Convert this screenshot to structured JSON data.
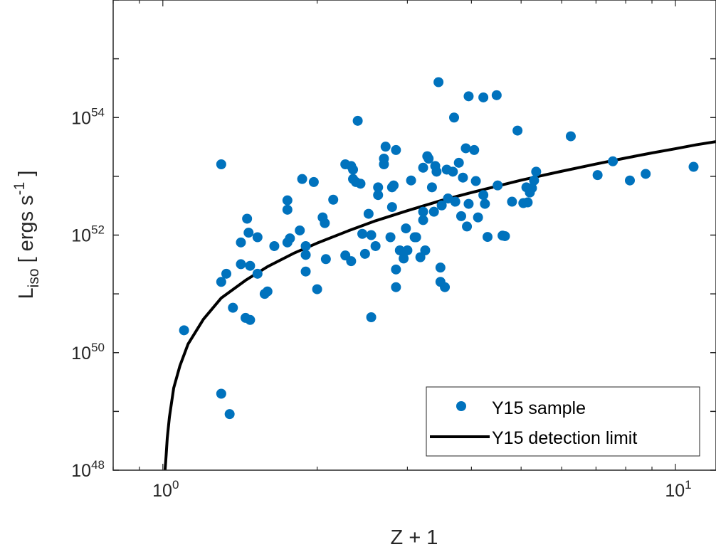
{
  "chart_data": {
    "type": "scatter",
    "xlabel": "Z + 1",
    "ylabel": {
      "base": "L",
      "sub": "iso",
      "unit_open": " [ ergs s",
      "unit_exp": "-1",
      "unit_close": " ]"
    },
    "x_scale": "log",
    "y_scale": "log",
    "xlim": [
      0.8,
      12
    ],
    "ylim": [
      1e+48,
      1e+56
    ],
    "x_ticks": [
      {
        "value": 1,
        "label": "10",
        "exp": "0"
      },
      {
        "value": 10,
        "label": "10",
        "exp": "1"
      }
    ],
    "y_ticks": [
      {
        "value": 1e+48,
        "label": "10",
        "exp": "48"
      },
      {
        "value": 1e+50,
        "label": "10",
        "exp": "50"
      },
      {
        "value": 1e+52,
        "label": "10",
        "exp": "52"
      },
      {
        "value": 1e+54,
        "label": "10",
        "exp": "54"
      }
    ],
    "grid": false,
    "legend_position": "bottom-right",
    "colors": {
      "points": "#0072BD",
      "limit_line": "#000000",
      "axes": "#262626"
    },
    "series": [
      {
        "name": "Y15 sample",
        "kind": "scatter",
        "points": [
          [
            1.1,
            2.4e+50
          ],
          [
            1.3,
            1.6e+53
          ],
          [
            1.3,
            1.6e+51
          ],
          [
            1.3,
            2e+49
          ],
          [
            1.33,
            2.2e+51
          ],
          [
            1.35,
            9e+48
          ],
          [
            1.37,
            5.8e+50
          ],
          [
            1.42,
            7.5e+51
          ],
          [
            1.42,
            3.2e+51
          ],
          [
            1.45,
            3.9e+50
          ],
          [
            1.46,
            1.9e+52
          ],
          [
            1.47,
            1.1e+52
          ],
          [
            1.48,
            3e+51
          ],
          [
            1.48,
            3.6e+50
          ],
          [
            1.53,
            2.2e+51
          ],
          [
            1.53,
            9.2e+51
          ],
          [
            1.58,
            1e+51
          ],
          [
            1.6,
            1.1e+51
          ],
          [
            1.65,
            6.5e+51
          ],
          [
            1.75,
            7.5e+51
          ],
          [
            1.75,
            2.7e+52
          ],
          [
            1.75,
            3.9e+52
          ],
          [
            1.77,
            8.8e+51
          ],
          [
            1.85,
            1.2e+52
          ],
          [
            1.87,
            9e+52
          ],
          [
            1.9,
            6.5e+51
          ],
          [
            1.9,
            2.4e+51
          ],
          [
            1.9,
            4.6e+51
          ],
          [
            1.97,
            8e+52
          ],
          [
            2,
            1.2e+51
          ],
          [
            2.05,
            2e+52
          ],
          [
            2.07,
            1.6e+52
          ],
          [
            2.08,
            3.9e+51
          ],
          [
            2.15,
            4e+52
          ],
          [
            2.27,
            4.5e+51
          ],
          [
            2.27,
            1.6e+53
          ],
          [
            2.33,
            1.5e+53
          ],
          [
            2.33,
            3.6e+51
          ],
          [
            2.35,
            9e+52
          ],
          [
            2.35,
            1.3e+53
          ],
          [
            2.38,
            8e+52
          ],
          [
            2.4,
            8.8e+53
          ],
          [
            2.43,
            7.5e+52
          ],
          [
            2.45,
            1.05e+52
          ],
          [
            2.48,
            4.8e+51
          ],
          [
            2.52,
            2.3e+52
          ],
          [
            2.55,
            1e+52
          ],
          [
            2.55,
            4e+50
          ],
          [
            2.6,
            6.5e+51
          ],
          [
            2.63,
            4.8e+52
          ],
          [
            2.63,
            6.5e+52
          ],
          [
            2.7,
            1.6e+53
          ],
          [
            2.7,
            2e+53
          ],
          [
            2.72,
            3.2e+53
          ],
          [
            2.78,
            9.2e+51
          ],
          [
            2.8,
            3e+52
          ],
          [
            2.8,
            6.5e+52
          ],
          [
            2.82,
            7e+52
          ],
          [
            2.85,
            2.8e+53
          ],
          [
            2.85,
            2.6e+51
          ],
          [
            2.85,
            1.3e+51
          ],
          [
            2.9,
            5.5e+51
          ],
          [
            2.95,
            4e+51
          ],
          [
            2.98,
            1.3e+52
          ],
          [
            3,
            5.5e+51
          ],
          [
            3.05,
            8.5e+52
          ],
          [
            3.1,
            9.2e+51
          ],
          [
            3.12,
            9.2e+51
          ],
          [
            3.18,
            4.2e+51
          ],
          [
            3.22,
            1.4e+53
          ],
          [
            3.22,
            1.8e+52
          ],
          [
            3.22,
            2.5e+52
          ],
          [
            3.25,
            5.5e+51
          ],
          [
            3.28,
            2.2e+53
          ],
          [
            3.3,
            2e+53
          ],
          [
            3.35,
            6.5e+52
          ],
          [
            3.38,
            2.5e+52
          ],
          [
            3.4,
            1.5e+53
          ],
          [
            3.42,
            1.2e+53
          ],
          [
            3.45,
            4e+54
          ],
          [
            3.48,
            2.8e+51
          ],
          [
            3.48,
            1.6e+51
          ],
          [
            3.5,
            3.2e+52
          ],
          [
            3.55,
            1.3e+51
          ],
          [
            3.58,
            1.3e+53
          ],
          [
            3.6,
            4.2e+52
          ],
          [
            3.68,
            1.2e+53
          ],
          [
            3.7,
            1e+54
          ],
          [
            3.72,
            3.7e+52
          ],
          [
            3.78,
            1.7e+53
          ],
          [
            3.82,
            2.1e+52
          ],
          [
            3.85,
            9.5e+52
          ],
          [
            3.9,
            3e+53
          ],
          [
            3.92,
            1.4e+52
          ],
          [
            3.95,
            2.3e+54
          ],
          [
            3.95,
            3.4e+52
          ],
          [
            4.05,
            2.8e+53
          ],
          [
            4.08,
            8.3e+52
          ],
          [
            4.12,
            2e+52
          ],
          [
            4.22,
            2.2e+54
          ],
          [
            4.22,
            4.8e+52
          ],
          [
            4.25,
            3.4e+52
          ],
          [
            4.3,
            9.3e+51
          ],
          [
            4.48,
            2.4e+54
          ],
          [
            4.5,
            7e+52
          ],
          [
            4.6,
            9.8e+51
          ],
          [
            4.65,
            9.6e+51
          ],
          [
            4.8,
            3.7e+52
          ],
          [
            4.92,
            6e+53
          ],
          [
            5.05,
            3.5e+52
          ],
          [
            5.12,
            6.5e+52
          ],
          [
            5.15,
            3.6e+52
          ],
          [
            5.2,
            5.3e+52
          ],
          [
            5.25,
            6.3e+52
          ],
          [
            5.3,
            8.5e+52
          ],
          [
            5.35,
            1.2e+53
          ],
          [
            6.25,
            4.8e+53
          ],
          [
            7.05,
            1.05e+53
          ],
          [
            7.55,
            1.8e+53
          ],
          [
            8.15,
            8.5e+52
          ],
          [
            8.75,
            1.1e+53
          ],
          [
            10.85,
            1.45e+53
          ]
        ]
      },
      {
        "name": "Y15 detection limit",
        "kind": "line",
        "points": [
          [
            1.01,
            1e+48
          ],
          [
            1.015,
            1.8e+48
          ],
          [
            1.02,
            3.5e+48
          ],
          [
            1.03,
            8e+48
          ],
          [
            1.05,
            2.5e+49
          ],
          [
            1.08,
            6e+49
          ],
          [
            1.12,
            1.4e+50
          ],
          [
            1.2,
            3.7e+50
          ],
          [
            1.3,
            8.5e+50
          ],
          [
            1.45,
            1.7e+51
          ],
          [
            1.6,
            2.9e+51
          ],
          [
            1.8,
            4.9e+51
          ],
          [
            2,
            7.3e+51
          ],
          [
            2.3,
            1.18e+52
          ],
          [
            2.6,
            1.75e+52
          ],
          [
            3,
            2.6e+52
          ],
          [
            3.5,
            3.9e+52
          ],
          [
            4,
            5.3e+52
          ],
          [
            5,
            8.6e+52
          ],
          [
            6,
            1.22e+53
          ],
          [
            7,
            1.62e+53
          ],
          [
            8,
            2.05e+53
          ],
          [
            9,
            2.5e+53
          ],
          [
            10,
            2.95e+53
          ],
          [
            11,
            3.45e+53
          ],
          [
            12,
            3.9e+53
          ]
        ]
      }
    ]
  }
}
